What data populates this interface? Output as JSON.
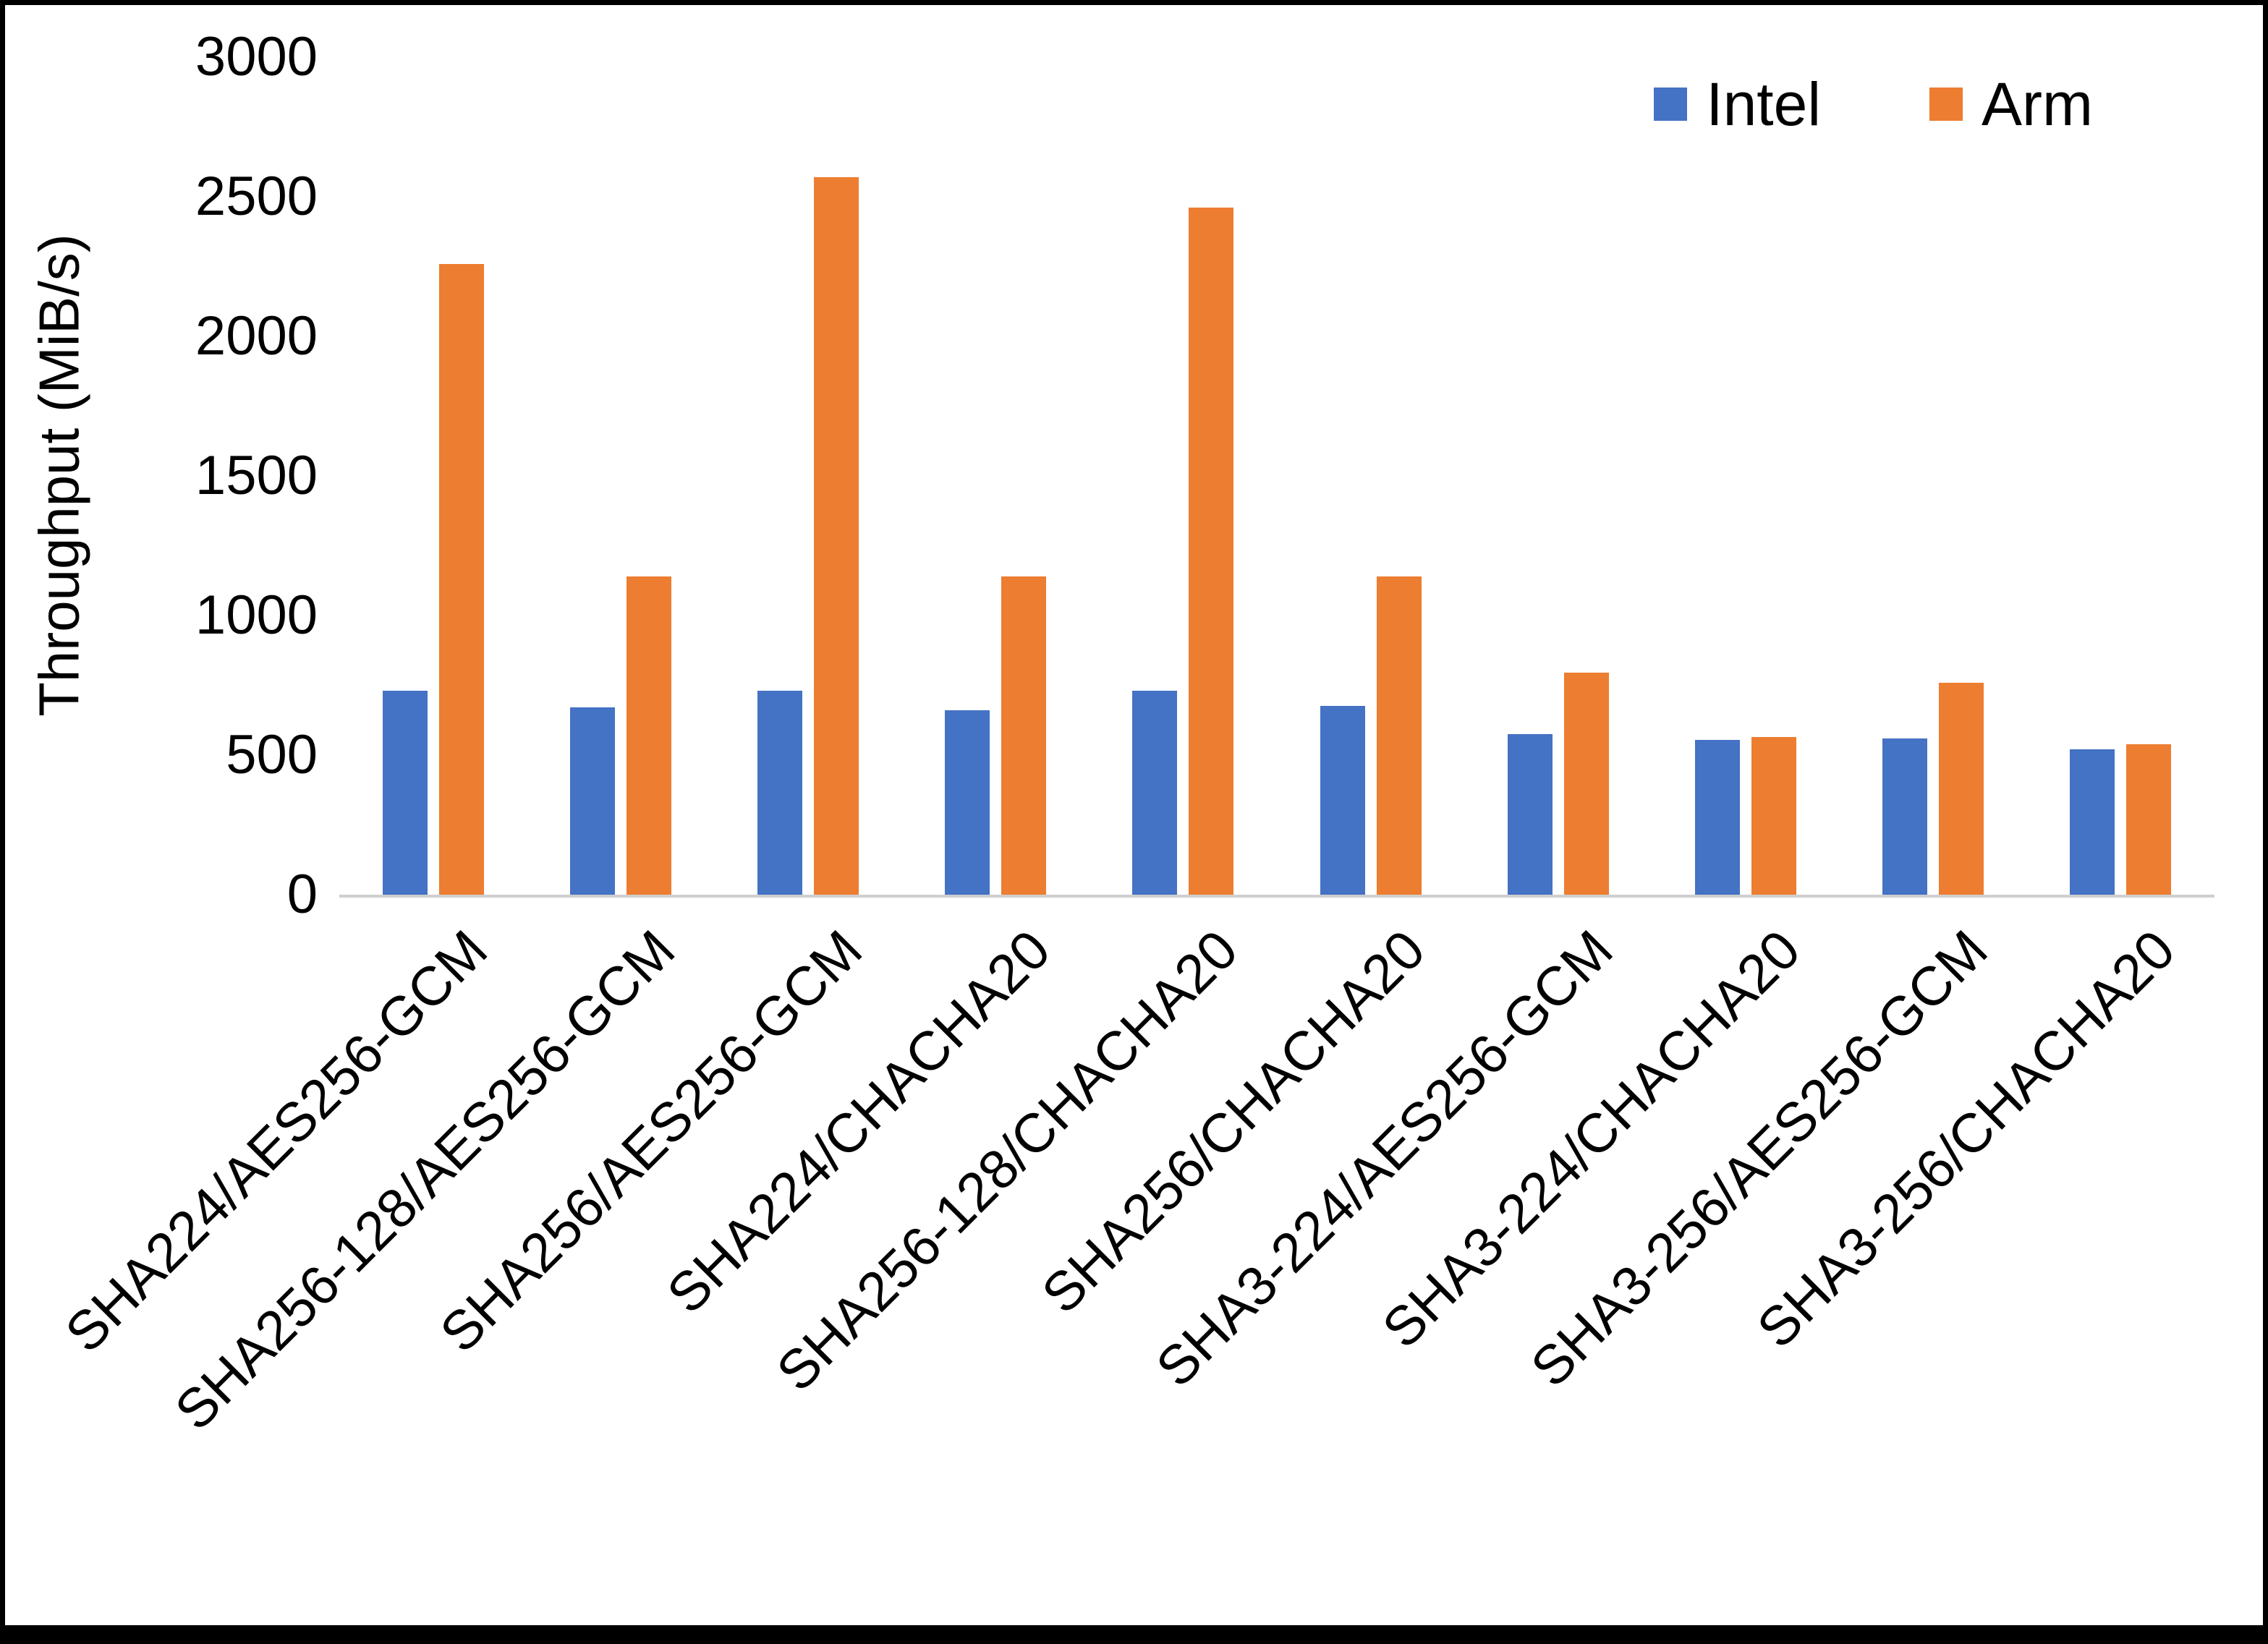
{
  "chart_data": {
    "type": "bar",
    "title": "",
    "xlabel": "",
    "ylabel": "Throughput (MiB/s)",
    "ylim": [
      0,
      3000
    ],
    "ytick_step": 500,
    "ytick_labels": [
      "0",
      "500",
      "1000",
      "1500",
      "2000",
      "2500",
      "3000"
    ],
    "grid": false,
    "legend_position": "top-right",
    "categories": [
      "SHA224/AES256-GCM",
      "SHA256-128/AES256-GCM",
      "SHA256/AES256-GCM",
      "SHA224/CHACHA20",
      "SHA256-128/CHACHA20",
      "SHA256/CHACHA20",
      "SHA3-224/AES256-GCM",
      "SHA3-224/CHACHA20",
      "SHA3-256/AES256-GCM",
      "SHA3-256/CHACHA20"
    ],
    "series": [
      {
        "name": "Intel",
        "color": "#4472C4",
        "values": [
          730,
          670,
          730,
          660,
          730,
          675,
          575,
          555,
          560,
          520
        ]
      },
      {
        "name": "Arm",
        "color": "#ED7D31",
        "values": [
          2260,
          1140,
          2570,
          1140,
          2460,
          1140,
          795,
          565,
          760,
          540
        ]
      }
    ]
  }
}
